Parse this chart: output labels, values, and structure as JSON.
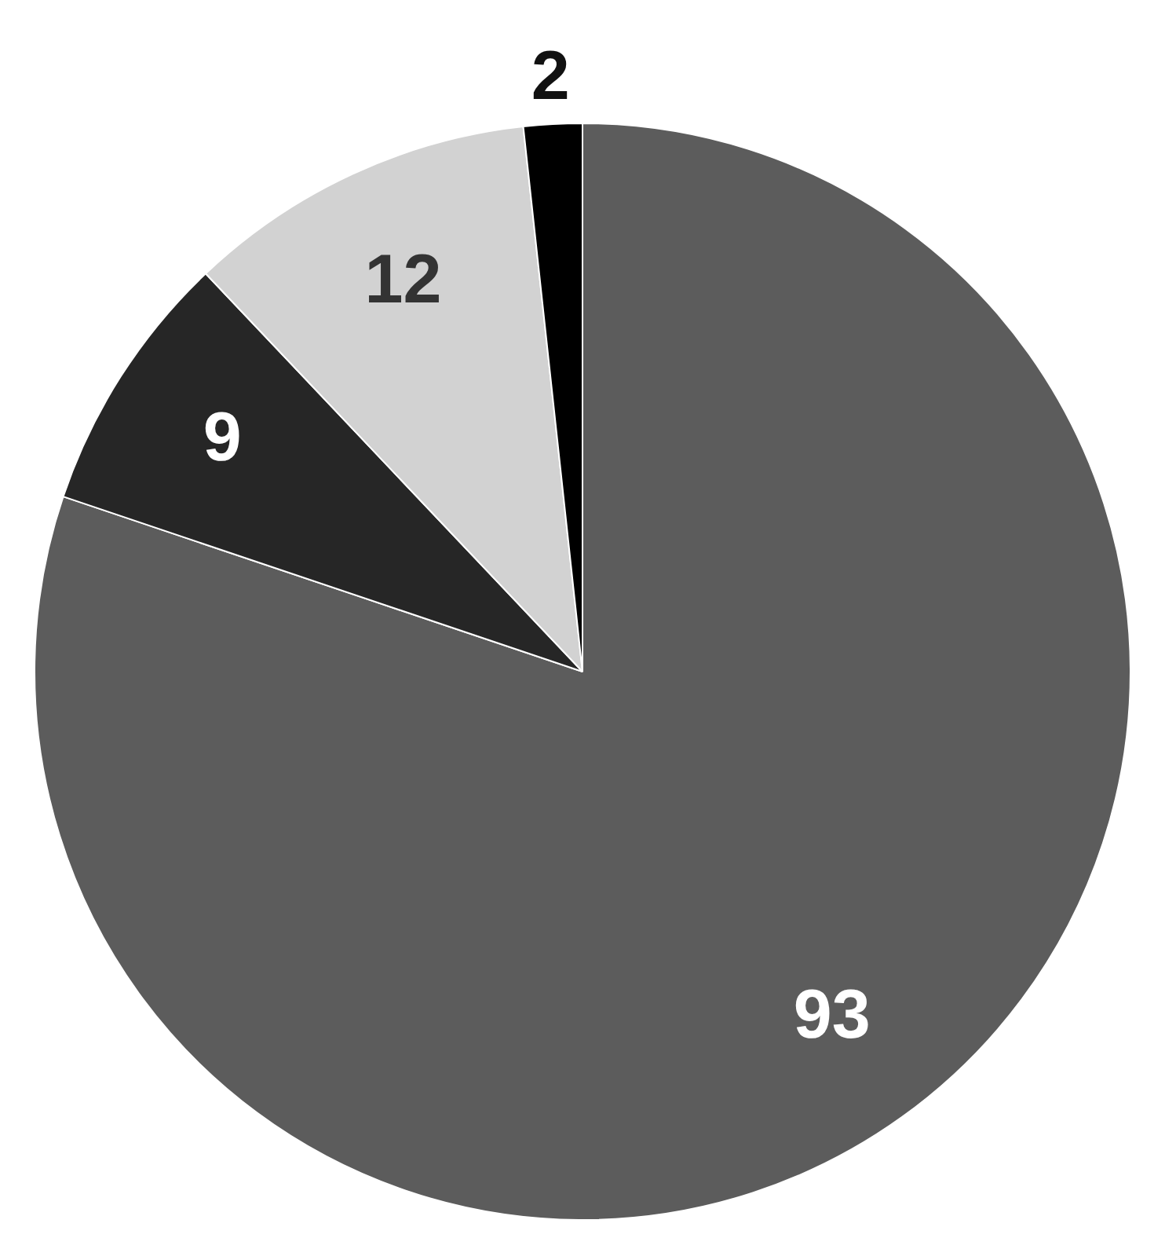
{
  "chart_data": {
    "type": "pie",
    "categories": [
      null,
      null,
      null,
      null
    ],
    "values": [
      93,
      9,
      12,
      2
    ],
    "colors": [
      "#5c5c5c",
      "#262626",
      "#d2d2d2",
      "#000000"
    ],
    "data_labels": true,
    "legend": false
  }
}
